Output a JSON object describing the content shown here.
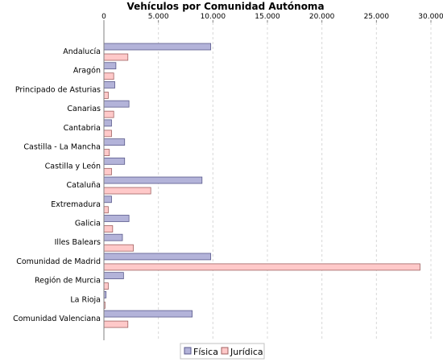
{
  "chart_data": {
    "type": "bar",
    "orientation": "horizontal",
    "title": "Vehículos por Comunidad Autónoma",
    "xlabel": "",
    "ylabel": "",
    "xlim": [
      0,
      30000
    ],
    "x_ticks": [
      "0",
      "5.000",
      "10.000",
      "15.000",
      "20.000",
      "25.000",
      "30.000"
    ],
    "x_tick_values": [
      0,
      5000,
      10000,
      15000,
      20000,
      25000,
      30000
    ],
    "axis_position": "top",
    "grid": true,
    "legend_position": "bottom",
    "categories": [
      "Andalucía",
      "Aragón",
      "Principado de Asturias",
      "Canarias",
      "Cantabria",
      "Castilla - La Mancha",
      "Castilla y León",
      "Cataluña",
      "Extremadura",
      "Galicia",
      "Illes Balears",
      "Comunidad de Madrid",
      "Región de Murcia",
      "La Rioja",
      "Comunidad Valenciana"
    ],
    "series": [
      {
        "name": "Física",
        "color": "#b3b3d9",
        "stroke": "#5a5a8c",
        "values": [
          9800,
          1100,
          1000,
          2300,
          700,
          1900,
          1900,
          9000,
          700,
          2300,
          1700,
          9800,
          1800,
          200,
          8100
        ]
      },
      {
        "name": "Jurídica",
        "color": "#ffc9c9",
        "stroke": "#a06060",
        "values": [
          2200,
          900,
          400,
          900,
          700,
          500,
          700,
          4300,
          400,
          800,
          2700,
          29000,
          400,
          100,
          2200
        ]
      }
    ]
  }
}
